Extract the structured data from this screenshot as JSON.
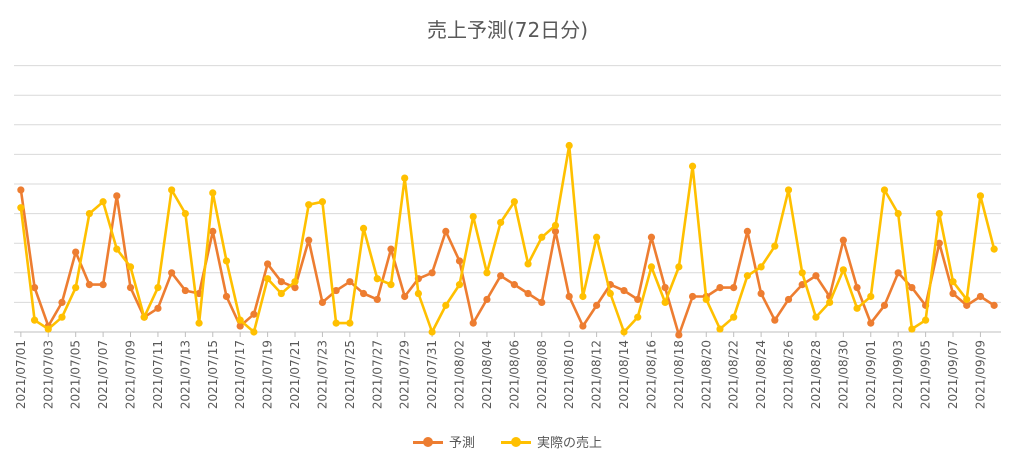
{
  "chart_data": {
    "type": "line",
    "title": "売上予測(72日分)",
    "xlabel": "",
    "ylabel": "",
    "grid": true,
    "legend_position": "bottom",
    "ylim": [
      0,
      10
    ],
    "y_ticks": [
      0,
      1,
      2,
      3,
      4,
      5,
      6,
      7,
      8,
      9
    ],
    "x_tick_labels": [
      "2021/07/01",
      "2021/07/03",
      "2021/07/05",
      "2021/07/07",
      "2021/07/09",
      "2021/07/11",
      "2021/07/13",
      "2021/07/15",
      "2021/07/17",
      "2021/07/19",
      "2021/07/21",
      "2021/07/23",
      "2021/07/25",
      "2021/07/27",
      "2021/07/29",
      "2021/07/31",
      "2021/08/02",
      "2021/08/04",
      "2021/08/06",
      "2021/08/08",
      "2021/08/10",
      "2021/08/12",
      "2021/08/14",
      "2021/08/16",
      "2021/08/18",
      "2021/08/20",
      "2021/08/22",
      "2021/08/24",
      "2021/08/26",
      "2021/08/28",
      "2021/08/30",
      "2021/09/01",
      "2021/09/03",
      "2021/09/05",
      "2021/09/07",
      "2021/09/09"
    ],
    "series": [
      {
        "name": "予測",
        "color": "#ED7D31",
        "values": [
          4.8,
          1.5,
          0.2,
          1.0,
          2.7,
          1.6,
          1.6,
          4.6,
          1.5,
          0.5,
          0.8,
          2.0,
          1.4,
          1.3,
          3.4,
          1.2,
          0.2,
          0.6,
          2.3,
          1.7,
          1.5,
          3.1,
          1.0,
          1.4,
          1.7,
          1.3,
          1.1,
          2.8,
          1.2,
          1.8,
          2.0,
          3.4,
          2.4,
          0.3,
          1.1,
          1.9,
          1.6,
          1.3,
          1.0,
          3.4,
          1.2,
          0.2,
          0.9,
          1.6,
          1.4,
          1.1,
          3.2,
          1.5,
          -0.1,
          1.2,
          1.2,
          1.5,
          1.5,
          3.4,
          1.3,
          0.4,
          1.1,
          1.6,
          1.9,
          1.2,
          3.1,
          1.5,
          0.3,
          0.9,
          2.0,
          1.5,
          0.9,
          3.0,
          1.3,
          0.9,
          1.2,
          0.9
        ]
      },
      {
        "name": "実際の売上",
        "color": "#FFC000",
        "values": [
          4.2,
          0.4,
          0.1,
          0.5,
          1.5,
          4.0,
          4.4,
          2.8,
          2.2,
          0.5,
          1.5,
          4.8,
          4.0,
          0.3,
          4.7,
          2.4,
          0.4,
          0.0,
          1.8,
          1.3,
          1.7,
          4.3,
          4.4,
          0.3,
          0.3,
          3.5,
          1.8,
          1.6,
          5.2,
          1.3,
          0.0,
          0.9,
          1.6,
          3.9,
          2.0,
          3.7,
          4.4,
          2.3,
          3.2,
          3.6,
          6.3,
          1.2,
          3.2,
          1.3,
          0.0,
          0.5,
          2.2,
          1.0,
          2.2,
          5.6,
          1.1,
          0.1,
          0.5,
          1.9,
          2.2,
          2.9,
          4.8,
          2.0,
          0.5,
          1.0,
          2.1,
          0.8,
          1.2,
          4.8,
          4.0,
          0.1,
          0.4,
          4.0,
          1.7,
          1.1,
          4.6,
          2.8
        ]
      }
    ]
  }
}
